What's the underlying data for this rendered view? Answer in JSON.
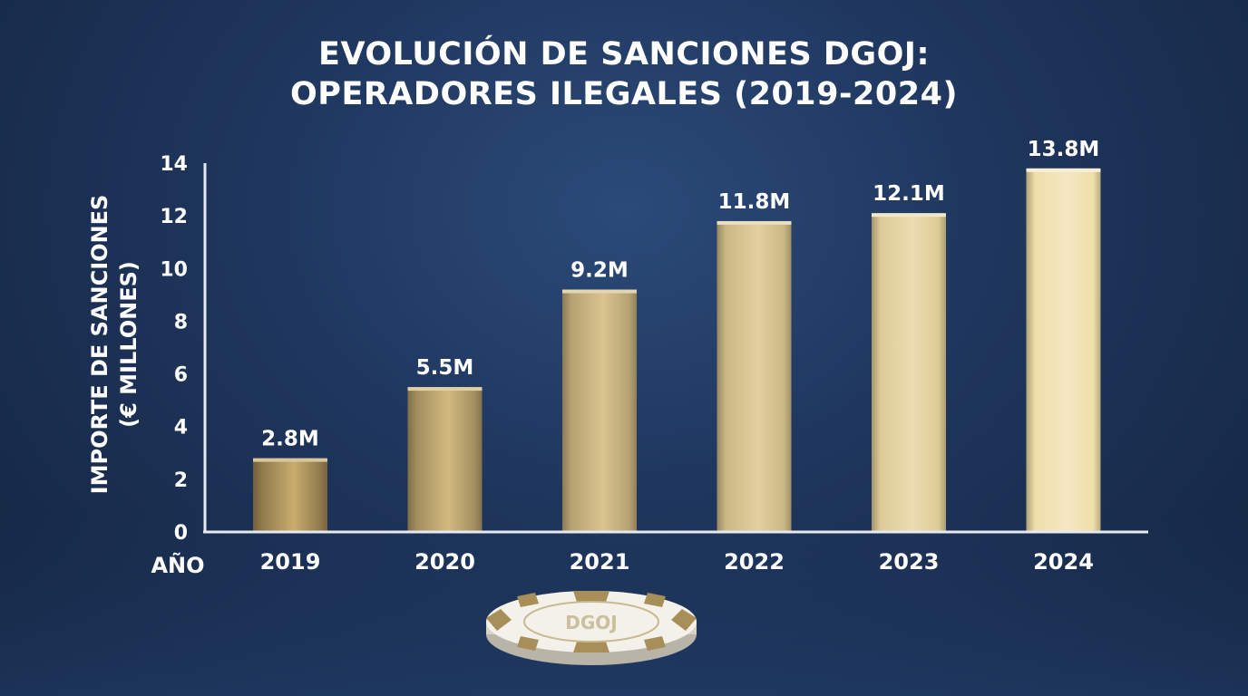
{
  "chart_data": {
    "type": "bar",
    "title_lines": [
      "EVOLUCIÓN DE SANCIONES DGOJ:",
      "OPERADORES ILEGALES (2019-2024)"
    ],
    "xlabel": "AÑO",
    "ylabel_lines": [
      "IMPORTE DE SANCIONES",
      "(€ MILLONES)"
    ],
    "categories": [
      "2019",
      "2020",
      "2021",
      "2022",
      "2023",
      "2024"
    ],
    "values": [
      2.8,
      5.5,
      9.2,
      11.8,
      12.1,
      13.8
    ],
    "value_labels": [
      "2.8M",
      "5.5M",
      "9.2M",
      "11.8M",
      "12.1M",
      "13.8M"
    ],
    "yticks": [
      0,
      2,
      4,
      6,
      8,
      10,
      12,
      14
    ],
    "ylim": [
      0,
      14
    ],
    "grid": false,
    "colors": {
      "bar_light": "#f0dfaa",
      "bar_mid": "#c9ad6e",
      "bar_dark": "#8f7a4c",
      "axis": "#e6e9ef"
    }
  },
  "chip": {
    "text": "DGOJ"
  }
}
